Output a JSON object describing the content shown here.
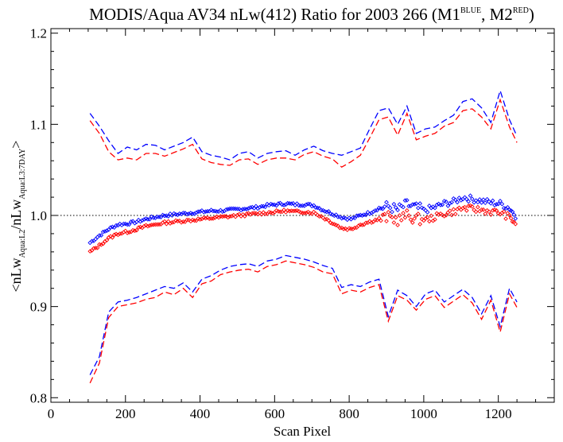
{
  "chart_data": {
    "type": "line",
    "title": {
      "prefix": "MODIS/Aqua AV34 nLw(412) Ratio for 2003 266 (M1",
      "sup1": "BLUE",
      "middle": ", M2",
      "sup2": "RED",
      "suffix": ")"
    },
    "xlabel": "Scan Pixel",
    "ylabel": {
      "part1": "<nLw",
      "sub1": "Aqua:L2",
      "part2": "/nLw",
      "sub2": "Aqua:L3:7DAY",
      "part3": ">"
    },
    "xlim": [
      0,
      1350
    ],
    "ylim": [
      0.795,
      1.205
    ],
    "x_ticks": [
      0,
      200,
      400,
      600,
      800,
      1000,
      1200
    ],
    "x_tick_labels": [
      "0",
      "200",
      "400",
      "600",
      "800",
      "1000",
      "1200"
    ],
    "y_ticks": [
      0.8,
      0.9,
      1.0,
      1.1,
      1.2
    ],
    "y_tick_labels": [
      "0.8",
      "0.9",
      "1.0",
      "1.1",
      "1.2"
    ],
    "reference_line": 1.0,
    "colors": {
      "M1": "#0000ff",
      "M2": "#ff0000",
      "axis": "#000000"
    },
    "x": [
      105,
      130,
      155,
      180,
      205,
      230,
      255,
      280,
      305,
      330,
      355,
      380,
      405,
      430,
      455,
      480,
      505,
      530,
      555,
      580,
      605,
      630,
      655,
      680,
      705,
      730,
      755,
      780,
      805,
      830,
      855,
      880,
      905,
      930,
      955,
      980,
      1005,
      1030,
      1055,
      1080,
      1105,
      1130,
      1155,
      1180,
      1205,
      1230,
      1250
    ],
    "series": [
      {
        "id": "M1",
        "upper": [
          1.112,
          1.098,
          1.082,
          1.068,
          1.075,
          1.072,
          1.078,
          1.077,
          1.072,
          1.076,
          1.08,
          1.086,
          1.07,
          1.066,
          1.064,
          1.061,
          1.068,
          1.07,
          1.063,
          1.068,
          1.07,
          1.071,
          1.066,
          1.072,
          1.076,
          1.071,
          1.068,
          1.066,
          1.07,
          1.074,
          1.095,
          1.115,
          1.118,
          1.1,
          1.12,
          1.09,
          1.095,
          1.097,
          1.104,
          1.11,
          1.125,
          1.128,
          1.118,
          1.102,
          1.137,
          1.105,
          1.087
        ],
        "lower": [
          0.825,
          0.845,
          0.894,
          0.905,
          0.907,
          0.91,
          0.914,
          0.918,
          0.922,
          0.92,
          0.926,
          0.916,
          0.93,
          0.934,
          0.94,
          0.944,
          0.946,
          0.947,
          0.944,
          0.95,
          0.952,
          0.956,
          0.954,
          0.952,
          0.949,
          0.945,
          0.942,
          0.921,
          0.924,
          0.922,
          0.927,
          0.93,
          0.889,
          0.918,
          0.912,
          0.9,
          0.914,
          0.918,
          0.905,
          0.912,
          0.919,
          0.91,
          0.892,
          0.912,
          0.878,
          0.92,
          0.905
        ],
        "mean": [
          0.97,
          0.978,
          0.985,
          0.99,
          0.991,
          0.993,
          0.996,
          0.998,
          1.0,
          1.001,
          1.002,
          1.003,
          1.004,
          1.005,
          1.005,
          1.006,
          1.007,
          1.008,
          1.009,
          1.011,
          1.012,
          1.013,
          1.012,
          1.012,
          1.011,
          1.006,
          1.002,
          0.998,
          0.996,
          1.0,
          1.003,
          1.008,
          1.01,
          1.006,
          1.012,
          1.008,
          1.006,
          1.009,
          1.013,
          1.015,
          1.02,
          1.018,
          1.016,
          1.014,
          1.013,
          1.008,
          0.998
        ]
      },
      {
        "id": "M2",
        "upper": [
          1.104,
          1.09,
          1.07,
          1.061,
          1.063,
          1.061,
          1.068,
          1.068,
          1.065,
          1.069,
          1.073,
          1.078,
          1.062,
          1.058,
          1.056,
          1.055,
          1.061,
          1.062,
          1.056,
          1.061,
          1.063,
          1.063,
          1.061,
          1.067,
          1.07,
          1.065,
          1.062,
          1.053,
          1.059,
          1.066,
          1.085,
          1.105,
          1.108,
          1.088,
          1.112,
          1.083,
          1.087,
          1.09,
          1.098,
          1.102,
          1.115,
          1.117,
          1.108,
          1.095,
          1.127,
          1.097,
          1.08
        ],
        "lower": [
          0.816,
          0.838,
          0.888,
          0.9,
          0.902,
          0.904,
          0.908,
          0.91,
          0.916,
          0.913,
          0.92,
          0.91,
          0.925,
          0.928,
          0.935,
          0.938,
          0.94,
          0.941,
          0.938,
          0.944,
          0.946,
          0.95,
          0.948,
          0.946,
          0.943,
          0.938,
          0.936,
          0.914,
          0.918,
          0.916,
          0.921,
          0.924,
          0.884,
          0.912,
          0.907,
          0.896,
          0.908,
          0.912,
          0.899,
          0.906,
          0.913,
          0.904,
          0.886,
          0.907,
          0.872,
          0.914,
          0.899
        ],
        "mean": [
          0.96,
          0.967,
          0.975,
          0.98,
          0.982,
          0.985,
          0.988,
          0.99,
          0.992,
          0.993,
          0.994,
          0.995,
          0.996,
          0.997,
          0.998,
          0.999,
          1.0,
          1.001,
          1.002,
          1.003,
          1.004,
          1.005,
          1.004,
          1.004,
          1.003,
          0.998,
          0.992,
          0.986,
          0.985,
          0.99,
          0.993,
          0.996,
          0.998,
          0.995,
          1.0,
          0.996,
          0.995,
          0.998,
          1.002,
          1.004,
          1.008,
          1.007,
          1.006,
          1.004,
          1.003,
          0.998,
          0.99
        ]
      }
    ]
  }
}
